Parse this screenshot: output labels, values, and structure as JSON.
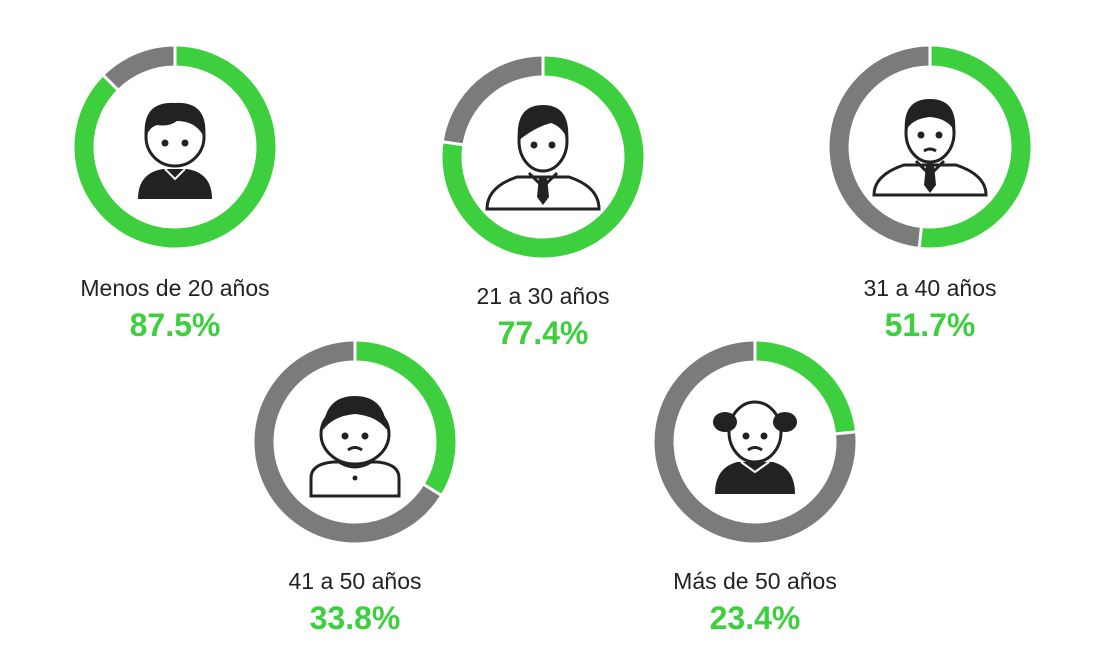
{
  "chart_data": {
    "type": "donut",
    "colors": {
      "filled": "#3ecf3e",
      "remaining": "#7b7b7b"
    },
    "items": [
      {
        "label": "Menos de 20 años",
        "value": 87.5,
        "value_label": "87.5%",
        "icon": "boy-icon"
      },
      {
        "label": "21 a 30 años",
        "value": 77.4,
        "value_label": "77.4%",
        "icon": "young-man-tie-icon"
      },
      {
        "label": "31 a 40 años",
        "value": 51.7,
        "value_label": "51.7%",
        "icon": "man-tie-icon"
      },
      {
        "label": "41 a 50 años",
        "value": 33.8,
        "value_label": "33.8%",
        "icon": "middle-aged-man-icon"
      },
      {
        "label": "Más de 50 años",
        "value": 23.4,
        "value_label": "23.4%",
        "icon": "old-man-icon"
      }
    ]
  }
}
